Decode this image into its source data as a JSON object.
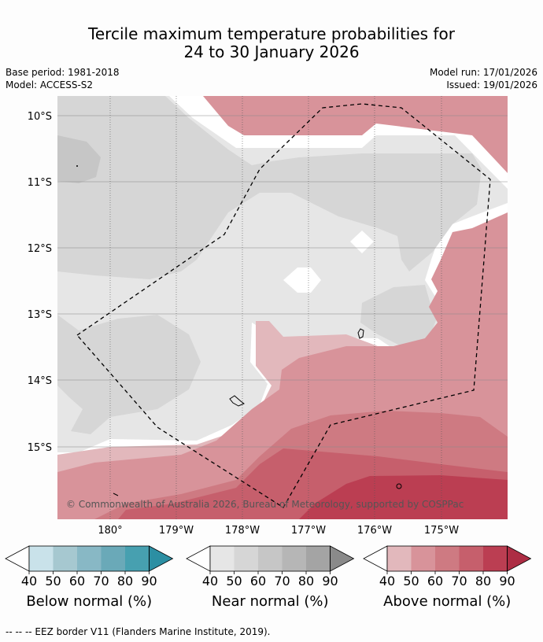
{
  "title_line1": "Tercile maximum temperature probabilities for",
  "title_line2": "24 to 30 January 2026",
  "base_period": "Base period: 1981-2018",
  "model": "Model: ACCESS-S2",
  "model_run": "Model run: 17/01/2026",
  "issued": "Issued: 19/01/2026",
  "lat_labels": [
    "10°S",
    "11°S",
    "12°S",
    "13°S",
    "14°S",
    "15°S"
  ],
  "lon_labels": [
    "180°",
    "179°W",
    "178°W",
    "177°W",
    "176°W",
    "175°W"
  ],
  "copyright": "© Commonwealth of Australia 2026, Bureau of Meteorology, supported by COSPPac",
  "colorbars": [
    {
      "title": "Below normal (%)",
      "ticks": [
        "40",
        "50",
        "60",
        "70",
        "80",
        "90"
      ],
      "colors": [
        "#c9e2ea",
        "#a6c8d0",
        "#88b8c5",
        "#6aa9b8",
        "#47a0b0",
        "#2c8fa3"
      ]
    },
    {
      "title": "Near normal (%)",
      "ticks": [
        "40",
        "50",
        "60",
        "70",
        "80",
        "90"
      ],
      "colors": [
        "#e6e6e6",
        "#d6d6d6",
        "#c6c6c6",
        "#b6b6b6",
        "#a4a4a4",
        "#8a8a8a"
      ]
    },
    {
      "title": "Above normal (%)",
      "ticks": [
        "40",
        "50",
        "60",
        "70",
        "80",
        "90"
      ],
      "colors": [
        "#e2b8bc",
        "#d8939a",
        "#ce7a82",
        "#c65f6c",
        "#bb3e52",
        "#ad2d44"
      ]
    }
  ],
  "footnote": "--  --  -- EEZ border V11 (Flanders Marine Institute, 2019).",
  "colors": {
    "near_40": "#e6e6e6",
    "near_50": "#d6d6d6",
    "near_60": "#c6c6c6",
    "above_40": "#e2b8bc",
    "above_50": "#d8939a",
    "above_60": "#ce7a82",
    "above_70": "#c65f6c",
    "above_80": "#bb3e52"
  }
}
